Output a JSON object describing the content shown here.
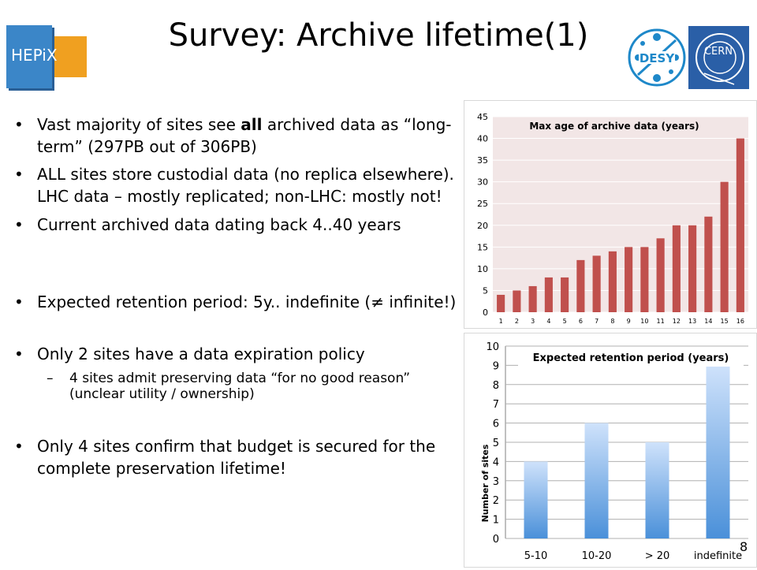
{
  "logo": {
    "text": "HEPiX"
  },
  "title": "Survey: Archive lifetime(1)",
  "partner_logos": {
    "desy": "DESY",
    "cern": "CERN"
  },
  "bullets": [
    {
      "pre": "Vast majority of sites see ",
      "bold": "all",
      "post": " archived data as “long-term” (297PB out of 306PB)"
    },
    {
      "text": "ALL sites store custodial data (no replica elsewhere). LHC data – mostly replicated; non-LHC: mostly not!"
    },
    {
      "text": "Current archived data dating back 4..40 years"
    },
    {
      "text": "Expected retention period: 5y.. indefinite (≠ infinite!)"
    },
    {
      "text": "Only 2 sites have a data expiration policy"
    },
    {
      "sub": "4 sites admit preserving data “for no good reason” (unclear utility / ownership)"
    },
    {
      "text": "Only 4 sites confirm that budget is secured for the complete preservation lifetime!"
    }
  ],
  "page_number": "8",
  "chart_data": [
    {
      "type": "bar",
      "title": "Max age of archive data (years)",
      "categories": [
        "1",
        "2",
        "3",
        "4",
        "5",
        "6",
        "7",
        "8",
        "9",
        "10",
        "11",
        "12",
        "13",
        "14",
        "15",
        "16"
      ],
      "values": [
        4,
        5,
        6,
        8,
        8,
        12,
        13,
        14,
        15,
        15,
        17,
        20,
        20,
        22,
        30,
        40
      ],
      "ylim": [
        0,
        45
      ],
      "yticks": [
        "0",
        "5",
        "10",
        "15",
        "20",
        "25",
        "30",
        "35",
        "40",
        "45"
      ],
      "xlabel": "",
      "ylabel": "",
      "colors": {
        "bar": "#c0504d",
        "plot_bg": "#f2e6e6",
        "grid": "#ffffff"
      }
    },
    {
      "type": "bar",
      "title": "Expected retention period (years)",
      "categories": [
        "5-10",
        "10-20",
        "> 20",
        "indefinite"
      ],
      "values": [
        4,
        6,
        5,
        9
      ],
      "ylim": [
        0,
        10
      ],
      "yticks": [
        "0",
        "1",
        "2",
        "3",
        "4",
        "5",
        "6",
        "7",
        "8",
        "9",
        "10"
      ],
      "xlabel": "",
      "ylabel": "Number of sites",
      "colors": {
        "bar_top": "#cfe2fb",
        "bar_bottom": "#4a90d9",
        "grid": "#b0b0b0"
      }
    }
  ]
}
